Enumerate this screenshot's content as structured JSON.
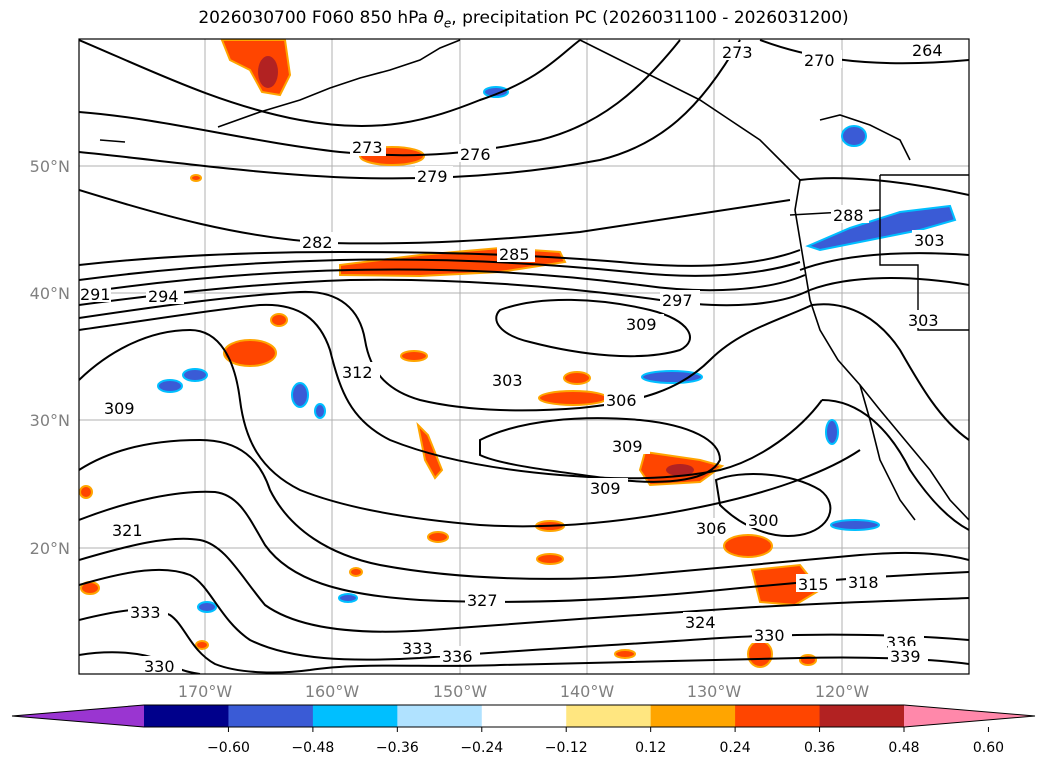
{
  "title": {
    "run": "2026030700 F060 850 hPa",
    "theta": "θ",
    "sub": "e",
    "rest": ", precipitation PC (2026031100 - 2026031200)"
  },
  "axes": {
    "lat_labels": [
      "50°N",
      "40°N",
      "30°N",
      "20°N"
    ],
    "lon_labels": [
      "170°W",
      "160°W",
      "150°W",
      "140°W",
      "130°W",
      "120°W"
    ]
  },
  "contour_labels": [
    "273",
    "276",
    "279",
    "282",
    "285",
    "288",
    "291",
    "294",
    "297",
    "300",
    "303",
    "306",
    "309",
    "312",
    "315",
    "318",
    "321",
    "324",
    "327",
    "330",
    "333",
    "336",
    "339",
    "264",
    "270"
  ],
  "colorbar": {
    "ticks": [
      "−0.60",
      "−0.48",
      "−0.36",
      "−0.24",
      "−0.12",
      "0.12",
      "0.24",
      "0.36",
      "0.48",
      "0.60"
    ],
    "colors": [
      "#9a35d1",
      "#00008b",
      "#3a5bd6",
      "#00bfff",
      "#b0e2ff",
      "#ffffff",
      "#ffe680",
      "#ffa500",
      "#ff4500",
      "#b22222",
      "#ff88aa"
    ]
  }
}
